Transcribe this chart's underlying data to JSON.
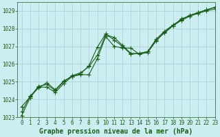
{
  "title": "Graphe pression niveau de la mer (hPa)",
  "bg_color": "#cceef0",
  "grid_color": "#b0d8dc",
  "line_color": "#1a5c1a",
  "ylim": [
    1023,
    1029.5
  ],
  "xlim": [
    -0.5,
    23
  ],
  "yticks": [
    1023,
    1024,
    1025,
    1026,
    1027,
    1028,
    1029
  ],
  "xticks": [
    0,
    1,
    2,
    3,
    4,
    5,
    6,
    7,
    8,
    9,
    10,
    11,
    12,
    13,
    14,
    15,
    16,
    17,
    18,
    19,
    20,
    21,
    22,
    23
  ],
  "series": [
    [
      1023.1,
      1024.1,
      1024.7,
      1024.7,
      1024.4,
      1024.9,
      1025.3,
      1025.4,
      1025.4,
      1026.3,
      1027.55,
      1027.0,
      1026.9,
      1026.9,
      1026.55,
      1026.65,
      1027.3,
      1027.8,
      1028.15,
      1028.55,
      1028.7,
      1028.85,
      1029.0,
      1029.1
    ],
    [
      1023.6,
      1024.15,
      1024.75,
      1024.85,
      1024.5,
      1025.0,
      1025.35,
      1025.5,
      1025.85,
      1026.5,
      1027.65,
      1027.5,
      1027.05,
      1026.6,
      1026.6,
      1026.7,
      1027.4,
      1027.85,
      1028.2,
      1028.5,
      1028.75,
      1028.9,
      1029.05,
      1029.2
    ],
    [
      1023.3,
      1024.2,
      1024.65,
      1024.95,
      1024.55,
      1025.05,
      1025.3,
      1025.45,
      1025.9,
      1026.95,
      1027.7,
      1027.35,
      1027.0,
      1026.55,
      1026.6,
      1026.7,
      1027.35,
      1027.75,
      1028.15,
      1028.45,
      1028.7,
      1028.9,
      1029.05,
      1029.2
    ]
  ],
  "marker": "+",
  "markersize": 4,
  "linewidth": 0.8,
  "xlabel_fontsize": 7,
  "tick_fontsize": 5.5,
  "label_color": "#1a5c1a"
}
